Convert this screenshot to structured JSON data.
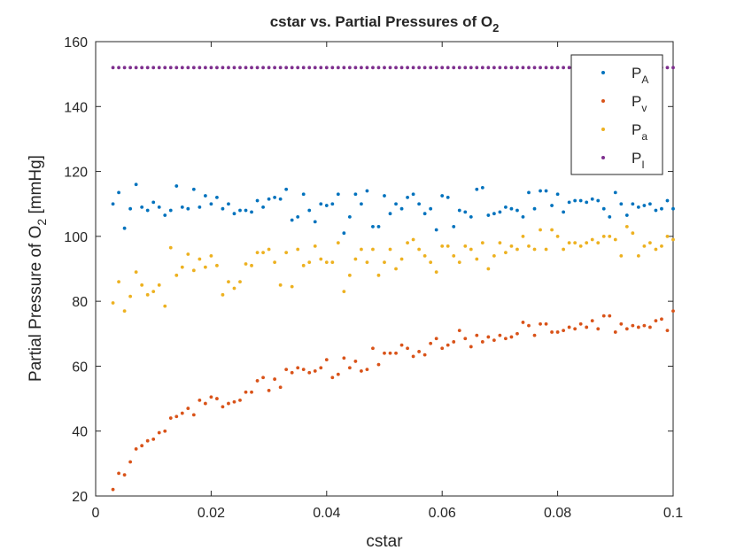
{
  "chart_data": {
    "type": "scatter",
    "title": "cstar vs. Partial Pressures of O",
    "title_subscript": "2",
    "xlabel": "cstar",
    "ylabel": "Partial Pressure of O",
    "ylabel_subscript": "2",
    "ylabel_suffix": " [mmHg]",
    "xlim": [
      0,
      0.1
    ],
    "xticks": [
      0,
      0.02,
      0.04,
      0.06,
      0.08,
      0.1
    ],
    "ylim": [
      20,
      160
    ],
    "yticks": [
      20,
      40,
      60,
      80,
      100,
      120,
      140,
      160
    ],
    "legend": "top-right",
    "x": [
      0.003,
      0.004,
      0.005,
      0.006,
      0.007,
      0.008,
      0.009,
      0.01,
      0.011,
      0.012,
      0.013,
      0.014,
      0.015,
      0.016,
      0.017,
      0.018,
      0.019,
      0.02,
      0.021,
      0.022,
      0.023,
      0.024,
      0.025,
      0.026,
      0.027,
      0.028,
      0.029,
      0.03,
      0.031,
      0.032,
      0.033,
      0.034,
      0.035,
      0.036,
      0.037,
      0.038,
      0.039,
      0.04,
      0.041,
      0.042,
      0.043,
      0.044,
      0.045,
      0.046,
      0.047,
      0.048,
      0.049,
      0.05,
      0.051,
      0.052,
      0.053,
      0.054,
      0.055,
      0.056,
      0.057,
      0.058,
      0.059,
      0.06,
      0.061,
      0.062,
      0.063,
      0.064,
      0.065,
      0.066,
      0.067,
      0.068,
      0.069,
      0.07,
      0.071,
      0.072,
      0.073,
      0.074,
      0.075,
      0.076,
      0.077,
      0.078,
      0.079,
      0.08,
      0.081,
      0.082,
      0.083,
      0.084,
      0.085,
      0.086,
      0.087,
      0.088,
      0.089,
      0.09,
      0.091,
      0.092,
      0.093,
      0.094,
      0.095,
      0.096,
      0.097,
      0.098,
      0.099,
      0.1
    ],
    "series": [
      {
        "name": "P",
        "subscript": "A",
        "color": "#0072bd",
        "values": [
          110,
          113.5,
          102.5,
          108.5,
          116,
          109,
          108,
          110.5,
          109,
          106.5,
          108,
          115.5,
          109,
          108.5,
          114.5,
          109,
          112.5,
          110,
          112,
          108.5,
          110,
          107,
          108,
          108,
          107.5,
          111,
          109,
          111.5,
          112,
          111.5,
          114.5,
          105,
          106,
          113,
          108,
          104.5,
          110,
          109.5,
          110,
          113,
          101,
          106,
          113,
          110,
          114,
          103,
          103,
          112.5,
          107,
          110,
          108.5,
          112,
          113,
          110,
          107,
          108.5,
          102,
          112.5,
          112,
          103,
          108,
          107.5,
          106,
          114.5,
          115,
          106.5,
          107,
          107.5,
          109,
          108.5,
          108,
          106,
          113.5,
          108.5,
          114,
          114,
          109.5,
          113,
          107.5,
          110.5,
          111,
          111,
          110.5,
          111.5,
          111,
          108.5,
          106,
          113.5,
          110,
          106.5,
          110,
          109,
          109.5,
          110,
          108,
          108.5,
          111,
          108.5
        ]
      },
      {
        "name": "P",
        "subscript": "v",
        "color": "#d95319",
        "values": [
          22,
          27,
          26.5,
          30.5,
          34.5,
          35.5,
          37,
          37.5,
          39.5,
          40,
          44,
          44.5,
          45.5,
          47,
          45,
          49.5,
          48.5,
          50.5,
          50,
          47.5,
          48.5,
          49,
          49.5,
          52,
          52,
          55.5,
          56.5,
          52.5,
          56,
          53.5,
          59,
          58,
          59.5,
          59,
          58,
          58.5,
          59.5,
          62,
          56.5,
          57.5,
          62.5,
          59.5,
          61.5,
          58.5,
          59,
          65.5,
          60.5,
          64,
          64,
          64,
          66.5,
          65.5,
          63,
          64.5,
          63.5,
          67,
          68.5,
          65.5,
          66.5,
          67.5,
          71,
          68.5,
          66,
          69.5,
          67.5,
          69,
          68,
          69.5,
          68.5,
          69,
          70,
          73.5,
          72.5,
          69.5,
          73,
          73,
          70.5,
          70.5,
          71,
          72,
          71.5,
          73,
          72,
          74,
          71.5,
          75.5,
          75.5,
          70.5,
          73,
          71.5,
          72.5,
          72,
          72.5,
          72,
          74,
          74.5,
          71,
          77
        ]
      },
      {
        "name": "P",
        "subscript": "a",
        "color": "#edb120",
        "values": [
          79.5,
          86,
          77,
          81.5,
          89,
          85,
          82,
          83,
          85,
          78.5,
          96.5,
          88,
          90.5,
          94.5,
          89.5,
          93,
          90.5,
          94,
          91,
          82,
          86,
          84,
          86,
          91.5,
          91,
          95,
          95,
          96,
          92,
          85,
          95,
          84.5,
          96,
          91,
          92,
          97,
          93,
          92,
          92,
          98,
          83,
          88,
          93,
          96,
          92,
          96,
          88,
          92,
          96,
          90,
          93,
          98,
          99,
          96,
          94,
          92,
          89,
          97,
          97,
          94,
          92,
          97,
          96,
          93,
          98,
          90,
          94,
          98,
          95,
          97,
          96,
          100,
          97,
          96,
          102,
          96,
          102,
          100,
          96,
          98,
          98,
          97,
          98,
          99,
          98,
          100,
          100,
          99,
          94,
          103,
          101,
          94,
          97,
          98,
          96,
          97,
          100,
          99
        ]
      },
      {
        "name": "P",
        "subscript": "I",
        "color": "#7e2f8e",
        "values": [
          152,
          152,
          152,
          152,
          152,
          152,
          152,
          152,
          152,
          152,
          152,
          152,
          152,
          152,
          152,
          152,
          152,
          152,
          152,
          152,
          152,
          152,
          152,
          152,
          152,
          152,
          152,
          152,
          152,
          152,
          152,
          152,
          152,
          152,
          152,
          152,
          152,
          152,
          152,
          152,
          152,
          152,
          152,
          152,
          152,
          152,
          152,
          152,
          152,
          152,
          152,
          152,
          152,
          152,
          152,
          152,
          152,
          152,
          152,
          152,
          152,
          152,
          152,
          152,
          152,
          152,
          152,
          152,
          152,
          152,
          152,
          152,
          152,
          152,
          152,
          152,
          152,
          152,
          152,
          152,
          152,
          152,
          152,
          152,
          152,
          152,
          152,
          152,
          152,
          152,
          152,
          152,
          152,
          152,
          152,
          152,
          152,
          152
        ]
      }
    ]
  }
}
